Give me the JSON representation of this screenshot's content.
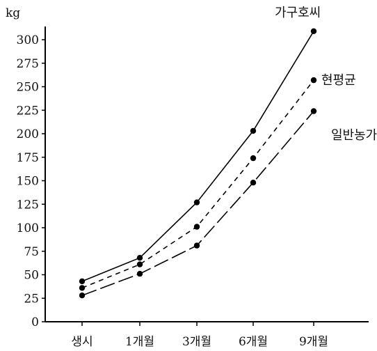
{
  "chart_data": {
    "type": "line",
    "ylabel": "kg",
    "ylim": [
      0,
      300
    ],
    "y_ticks": [
      0,
      25,
      50,
      75,
      100,
      125,
      150,
      175,
      200,
      225,
      250,
      275,
      300
    ],
    "categories": [
      "생시",
      "1개월",
      "3개월",
      "6개월",
      "9개월"
    ],
    "series": [
      {
        "name": "가구호씨",
        "values": [
          43,
          68,
          127,
          203,
          309
        ],
        "style": "solid"
      },
      {
        "name": "현평균",
        "values": [
          36,
          61,
          101,
          174,
          257
        ],
        "style": "dashed"
      },
      {
        "name": "일반농가",
        "values": [
          28,
          51,
          81,
          148,
          224
        ],
        "style": "dash-long"
      }
    ],
    "color": "#000000"
  }
}
